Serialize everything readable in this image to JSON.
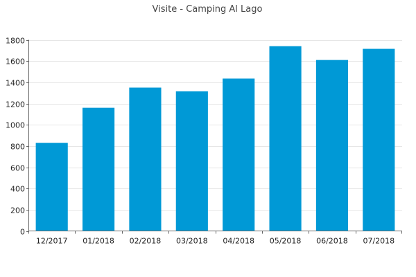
{
  "chart_data": {
    "type": "bar",
    "title": "Visite - Camping Al Lago",
    "xlabel": "",
    "ylabel": "",
    "categories": [
      "12/2017",
      "01/2018",
      "02/2018",
      "03/2018",
      "04/2018",
      "05/2018",
      "06/2018",
      "07/2018"
    ],
    "values": [
      830,
      1160,
      1350,
      1315,
      1435,
      1740,
      1610,
      1715
    ],
    "ylim": [
      0,
      1800
    ],
    "yticks": [
      0,
      200,
      400,
      600,
      800,
      1000,
      1200,
      1400,
      1600,
      1800
    ],
    "grid": true,
    "legend": "none",
    "bar_color": "#0099d6"
  }
}
